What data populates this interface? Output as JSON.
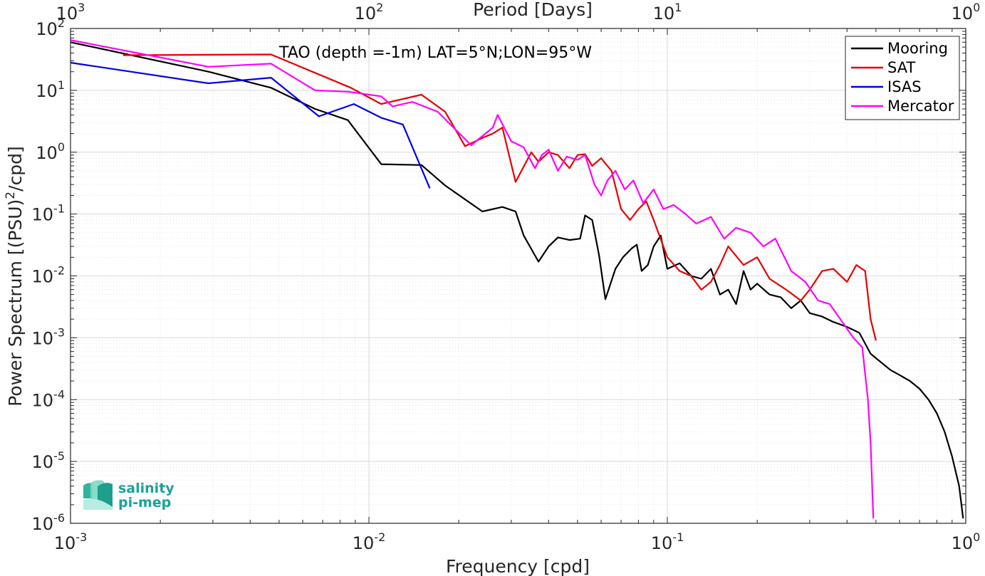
{
  "chart_data": {
    "type": "line",
    "annotation": "TAO (depth =-1m) LAT=5°N;LON=95°W",
    "xlabel": "Frequency [cpd]",
    "ylabel_parts": [
      "Power Spectrum [(PSU)",
      "2",
      "/cpd]"
    ],
    "top_xlabel": "Period [Days]",
    "x_scale": "log",
    "y_scale": "log",
    "xlim": [
      0.001,
      1
    ],
    "ylim": [
      1e-06,
      100
    ],
    "grid": true,
    "legend_position": "top-right",
    "x_ticks": [
      {
        "value": 0.001,
        "base": "10",
        "exp": "-3"
      },
      {
        "value": 0.01,
        "base": "10",
        "exp": "-2"
      },
      {
        "value": 0.1,
        "base": "10",
        "exp": "-1"
      },
      {
        "value": 1,
        "base": "10",
        "exp": "0"
      }
    ],
    "top_ticks": [
      {
        "value": 0.001,
        "base": "10",
        "exp": "3"
      },
      {
        "value": 0.01,
        "base": "10",
        "exp": "2"
      },
      {
        "value": 0.1,
        "base": "10",
        "exp": "1"
      },
      {
        "value": 1,
        "base": "10",
        "exp": "0"
      }
    ],
    "y_ticks": [
      {
        "value": 100,
        "base": "10",
        "exp": "2"
      },
      {
        "value": 10,
        "base": "10",
        "exp": "1"
      },
      {
        "value": 1,
        "base": "10",
        "exp": "0"
      },
      {
        "value": 0.1,
        "base": "10",
        "exp": "-1"
      },
      {
        "value": 0.01,
        "base": "10",
        "exp": "-2"
      },
      {
        "value": 0.001,
        "base": "10",
        "exp": "-3"
      },
      {
        "value": 0.0001,
        "base": "10",
        "exp": "-4"
      },
      {
        "value": 1e-05,
        "base": "10",
        "exp": "-5"
      },
      {
        "value": 1e-06,
        "base": "10",
        "exp": "-6"
      }
    ],
    "series": [
      {
        "name": "Mooring",
        "color": "#000000",
        "x": [
          0.001,
          0.0029,
          0.0047,
          0.0066,
          0.0085,
          0.011,
          0.015,
          0.018,
          0.024,
          0.028,
          0.031,
          0.033,
          0.037,
          0.04,
          0.043,
          0.047,
          0.051,
          0.053,
          0.056,
          0.059,
          0.062,
          0.067,
          0.071,
          0.076,
          0.079,
          0.082,
          0.086,
          0.09,
          0.095,
          0.1,
          0.11,
          0.12,
          0.13,
          0.14,
          0.15,
          0.16,
          0.17,
          0.18,
          0.19,
          0.2,
          0.22,
          0.24,
          0.26,
          0.28,
          0.3,
          0.33,
          0.36,
          0.4,
          0.44,
          0.48,
          0.52,
          0.56,
          0.6,
          0.65,
          0.7,
          0.75,
          0.8,
          0.85,
          0.9,
          0.95,
          0.98
        ],
        "y": [
          60,
          20,
          11,
          5,
          3.3,
          0.64,
          0.62,
          0.29,
          0.11,
          0.13,
          0.11,
          0.045,
          0.017,
          0.03,
          0.042,
          0.038,
          0.04,
          0.095,
          0.08,
          0.022,
          0.0042,
          0.013,
          0.02,
          0.028,
          0.032,
          0.012,
          0.015,
          0.03,
          0.045,
          0.013,
          0.016,
          0.01,
          0.009,
          0.013,
          0.005,
          0.006,
          0.0035,
          0.012,
          0.006,
          0.0075,
          0.005,
          0.0045,
          0.003,
          0.004,
          0.0025,
          0.0022,
          0.0018,
          0.0015,
          0.0012,
          0.00055,
          0.0004,
          0.0003,
          0.00025,
          0.0002,
          0.00015,
          0.0001,
          6e-05,
          3e-05,
          1.2e-05,
          4e-06,
          1.2e-06
        ]
      },
      {
        "name": "SAT",
        "color": "#e60000",
        "x": [
          0.0015,
          0.0047,
          0.0087,
          0.011,
          0.015,
          0.018,
          0.021,
          0.024,
          0.026,
          0.028,
          0.031,
          0.035,
          0.037,
          0.04,
          0.043,
          0.047,
          0.05,
          0.053,
          0.056,
          0.06,
          0.065,
          0.07,
          0.075,
          0.08,
          0.085,
          0.09,
          0.1,
          0.11,
          0.12,
          0.13,
          0.14,
          0.15,
          0.16,
          0.18,
          0.2,
          0.22,
          0.25,
          0.28,
          0.3,
          0.33,
          0.36,
          0.4,
          0.43,
          0.46,
          0.48,
          0.5
        ],
        "y": [
          37,
          38,
          11,
          6,
          8.5,
          4.5,
          1.25,
          1.7,
          2,
          2.5,
          0.33,
          1,
          0.7,
          1,
          0.9,
          0.55,
          0.9,
          0.93,
          0.6,
          0.8,
          0.5,
          0.12,
          0.08,
          0.12,
          0.16,
          0.08,
          0.02,
          0.012,
          0.01,
          0.006,
          0.008,
          0.015,
          0.03,
          0.015,
          0.02,
          0.009,
          0.006,
          0.004,
          0.006,
          0.012,
          0.013,
          0.008,
          0.015,
          0.012,
          0.002,
          0.0009
        ]
      },
      {
        "name": "ISAS",
        "color": "#0000e6",
        "x": [
          0.001,
          0.0029,
          0.0047,
          0.0068,
          0.0089,
          0.011,
          0.013,
          0.016
        ],
        "y": [
          28,
          13,
          16,
          3.8,
          6,
          3.6,
          2.8,
          0.26
        ]
      },
      {
        "name": "Mercator",
        "color": "#ff00ff",
        "x": [
          0.001,
          0.0029,
          0.0047,
          0.0066,
          0.0085,
          0.011,
          0.012,
          0.014,
          0.017,
          0.022,
          0.026,
          0.027,
          0.03,
          0.033,
          0.036,
          0.038,
          0.04,
          0.043,
          0.046,
          0.05,
          0.053,
          0.057,
          0.06,
          0.063,
          0.067,
          0.072,
          0.077,
          0.083,
          0.09,
          0.097,
          0.105,
          0.115,
          0.125,
          0.14,
          0.155,
          0.17,
          0.19,
          0.21,
          0.23,
          0.26,
          0.29,
          0.32,
          0.35,
          0.38,
          0.42,
          0.45,
          0.47,
          0.48,
          0.49
        ],
        "y": [
          65,
          24,
          27,
          10,
          9.5,
          8,
          5.5,
          6.5,
          4.5,
          1.3,
          2.5,
          4,
          1.5,
          1.2,
          0.55,
          0.9,
          1.1,
          0.5,
          0.85,
          0.75,
          0.9,
          0.3,
          0.2,
          0.35,
          0.5,
          0.25,
          0.35,
          0.15,
          0.25,
          0.12,
          0.14,
          0.1,
          0.07,
          0.09,
          0.04,
          0.06,
          0.05,
          0.03,
          0.04,
          0.012,
          0.008,
          0.004,
          0.0035,
          0.002,
          0.001,
          0.0007,
          0.0001,
          2e-05,
          1.2e-06
        ]
      }
    ]
  },
  "logo": {
    "line1": "salinity",
    "line2": "pi-mep"
  }
}
